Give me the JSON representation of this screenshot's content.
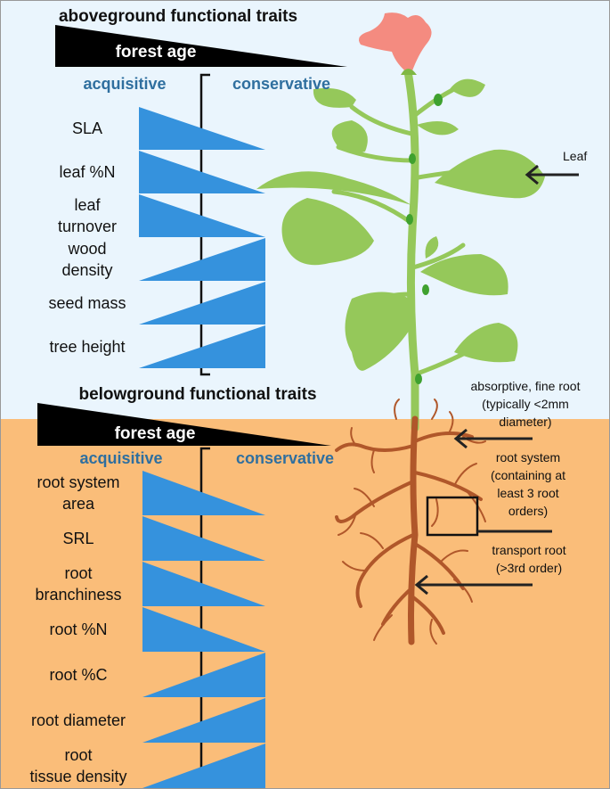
{
  "colors": {
    "sky": "#eaf5fd",
    "soil": "#fabd79",
    "wedge": "#3592dd",
    "category": "#2f6f9f",
    "stem": "#95c85a",
    "root": "#b0572a",
    "flower": "#f48b80"
  },
  "above": {
    "title": "aboveground functional traits",
    "forest_age": "forest age",
    "acquisitive": "acquisitive",
    "conservative": "conservative",
    "traits": [
      {
        "lines": [
          "SLA"
        ],
        "direction": "acquisitive"
      },
      {
        "lines": [
          "leaf %N"
        ],
        "direction": "acquisitive"
      },
      {
        "lines": [
          "leaf",
          "turnover"
        ],
        "direction": "acquisitive"
      },
      {
        "lines": [
          "wood",
          "density"
        ],
        "direction": "conservative"
      },
      {
        "lines": [
          "seed mass"
        ],
        "direction": "conservative"
      },
      {
        "lines": [
          "tree height"
        ],
        "direction": "conservative"
      }
    ]
  },
  "below": {
    "title": "belowground functional traits",
    "forest_age": "forest age",
    "acquisitive": "acquisitive",
    "conservative": "conservative",
    "traits": [
      {
        "lines": [
          "root system",
          "area"
        ],
        "direction": "acquisitive"
      },
      {
        "lines": [
          "SRL"
        ],
        "direction": "acquisitive"
      },
      {
        "lines": [
          "root",
          "branchiness"
        ],
        "direction": "acquisitive"
      },
      {
        "lines": [
          "root %N"
        ],
        "direction": "acquisitive"
      },
      {
        "lines": [
          "root %C"
        ],
        "direction": "conservative"
      },
      {
        "lines": [
          "root diameter"
        ],
        "direction": "conservative"
      },
      {
        "lines": [
          "root",
          "tissue density"
        ],
        "direction": "conservative"
      }
    ]
  },
  "annotations": {
    "leaf": "Leaf",
    "fine_root": [
      "absorptive, fine root",
      "(typically <2mm",
      "diameter)"
    ],
    "root_system": [
      "root system",
      "(containing at",
      "least 3 root",
      "orders)"
    ],
    "transport_root": [
      "transport root",
      "(>3rd order)"
    ]
  }
}
